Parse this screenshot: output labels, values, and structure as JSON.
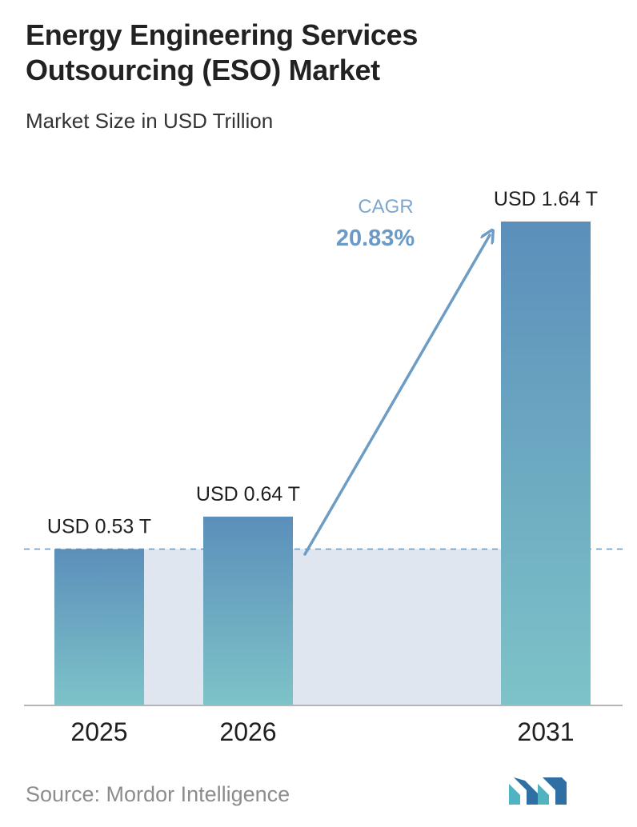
{
  "header": {
    "title_line1": "Energy Engineering Services",
    "title_line2": "Outsourcing (ESO) Market",
    "subtitle": "Market Size in USD Trillion"
  },
  "chart_data": {
    "type": "bar",
    "categories": [
      "2025",
      "2026",
      "2031"
    ],
    "values": [
      0.53,
      0.64,
      1.64
    ],
    "data_labels": [
      "USD 0.53 T",
      "USD 0.64 T",
      "USD 1.64 T"
    ],
    "ylim": [
      0,
      1.64
    ],
    "grid": false,
    "annotation": {
      "label": "CAGR",
      "value": "20.83%"
    },
    "colors": {
      "bar_top": "#5b8fbb",
      "bar_bottom": "#7ec3c8",
      "band": "#dfe6ef",
      "baseline_dash": "#6f93b3",
      "arrow": "#6d9cc4",
      "cagr_label": "#7fa7cc",
      "cagr_value": "#6b9ac6"
    }
  },
  "footer": {
    "source": "Source:  Mordor Intelligence",
    "logo_name": "mordor-intelligence-logo"
  }
}
